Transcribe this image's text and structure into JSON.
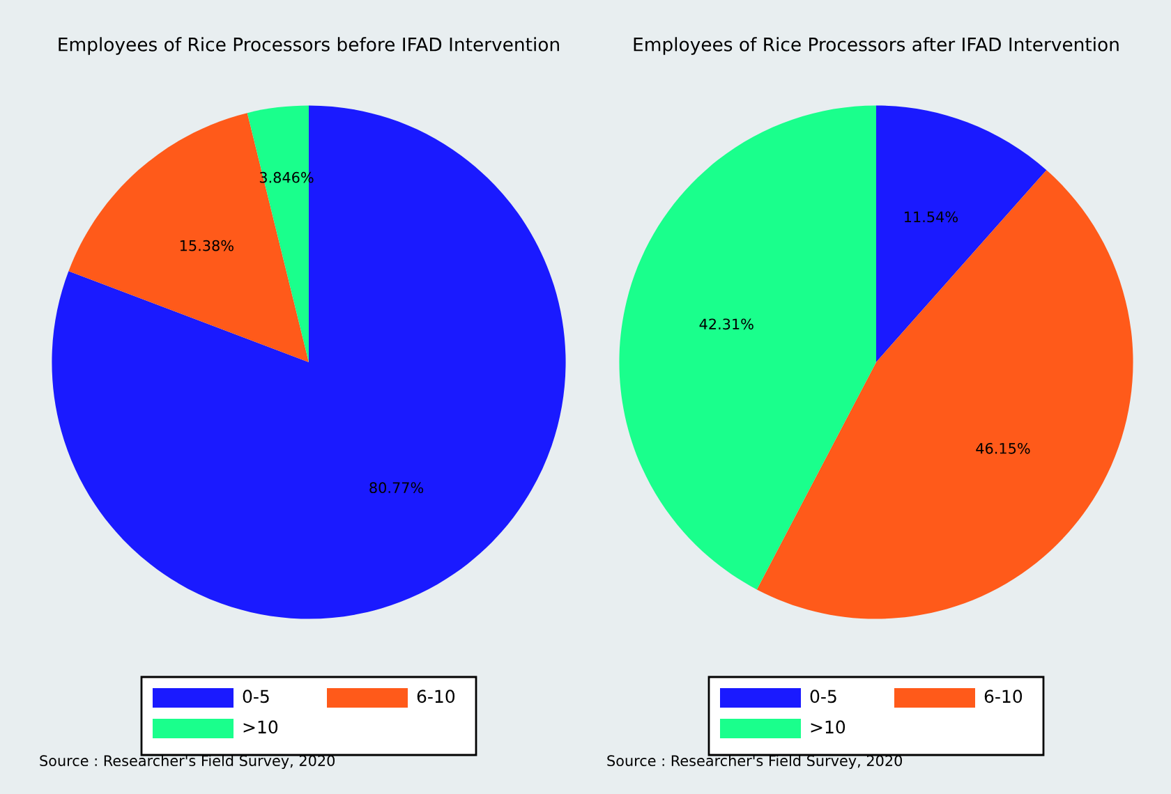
{
  "chart_data": [
    {
      "type": "pie",
      "title": "Employees of Rice Processors before IFAD Intervention",
      "categories": [
        "0-5",
        "6-10",
        ">10"
      ],
      "values": [
        80.77,
        15.38,
        3.846
      ],
      "value_labels": [
        "80.77%",
        "15.38%",
        "3.846%"
      ],
      "colors": [
        "#1a1aff",
        "#ff5a1a",
        "#1aff8c"
      ],
      "legend": "bottom",
      "annotations": [
        "Source : Researcher's Field Survey, 2020"
      ]
    },
    {
      "type": "pie",
      "title": "Employees of Rice Processors after IFAD Intervention",
      "categories": [
        "0-5",
        "6-10",
        ">10"
      ],
      "values": [
        11.54,
        46.15,
        42.31
      ],
      "value_labels": [
        "11.54%",
        "46.15%",
        "42.31%"
      ],
      "colors": [
        "#1a1aff",
        "#ff5a1a",
        "#1aff8c"
      ],
      "legend": "bottom",
      "annotations": [
        "Source : Researcher's Field Survey, 2020"
      ]
    }
  ]
}
